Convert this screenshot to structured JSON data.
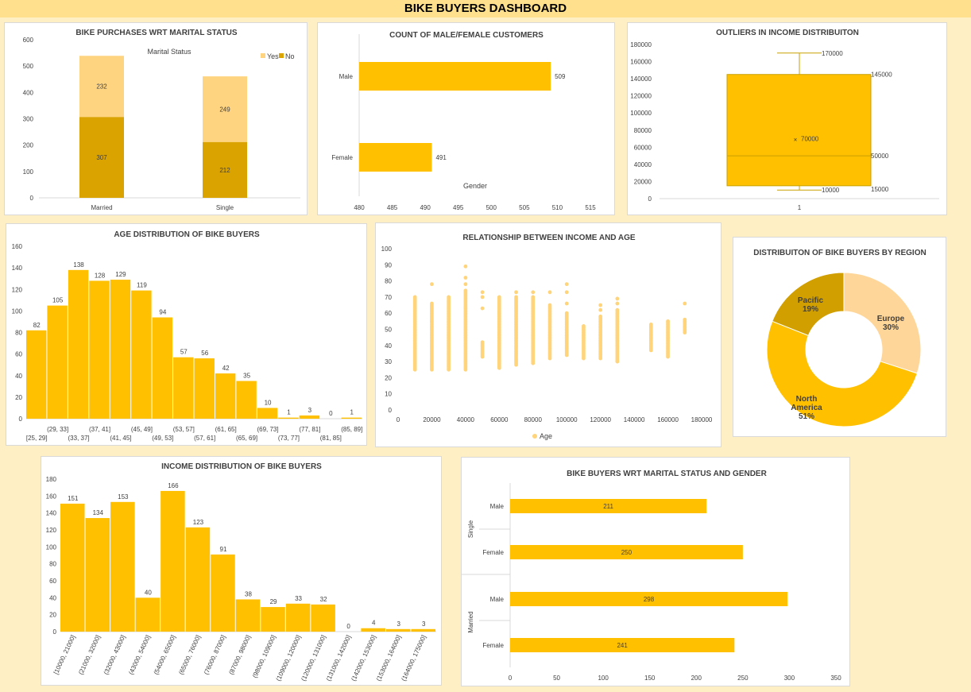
{
  "dashboard_title": "BIKE BUYERS DASHBOARD",
  "colors": {
    "gold": "#ffc000",
    "dark_gold": "#daa300",
    "light_gold": "#ffd480",
    "pale": "#ffe0a8",
    "scatter": "#ffd47a"
  },
  "chart_data": [
    {
      "id": "marital",
      "type": "bar",
      "stacked": true,
      "title": "BIKE PURCHASES WRT MARITAL STATUS",
      "legend_title": "Marital Status",
      "categories": [
        "Married",
        "Single"
      ],
      "series": [
        {
          "name": "No",
          "values": [
            307,
            212
          ],
          "color": "#daa300"
        },
        {
          "name": "Yes",
          "values": [
            232,
            249
          ],
          "color": "#ffd480"
        }
      ],
      "ylim": [
        0,
        600
      ],
      "yticks": [
        "0",
        "100",
        "200",
        "300",
        "400",
        "500",
        "600"
      ],
      "legend_position": "top-right"
    },
    {
      "id": "gender",
      "type": "bar",
      "orientation": "horizontal",
      "title": "COUNT OF MALE/FEMALE CUSTOMERS",
      "axis_title": "Gender",
      "categories": [
        "Male",
        "Female"
      ],
      "values": [
        509,
        491
      ],
      "xlim": [
        480,
        515
      ],
      "xticks": [
        "480",
        "485",
        "490",
        "495",
        "500",
        "505",
        "510",
        "515"
      ]
    },
    {
      "id": "box",
      "type": "box",
      "title": "OUTLIERS IN INCOME DISTRIBUITON",
      "category": "1",
      "min": 10000,
      "q1": 15000,
      "median": 50000,
      "mean": 70000,
      "q3": 145000,
      "max": 170000,
      "labels": {
        "min": "10000",
        "q1": "15000",
        "median": "50000",
        "mean": "70000",
        "q3": "145000",
        "max": "170000"
      },
      "ylim": [
        0,
        180000
      ],
      "yticks": [
        "0",
        "20000",
        "40000",
        "60000",
        "80000",
        "100000",
        "120000",
        "140000",
        "160000",
        "180000"
      ]
    },
    {
      "id": "age",
      "type": "bar",
      "title": "AGE DISTRIBUTION OF BIKE BUYERS",
      "categories": [
        "[25, 29]",
        "(29, 33]",
        "(33, 37]",
        "(37, 41]",
        "(41, 45]",
        "(45, 49]",
        "(49, 53]",
        "(53, 57]",
        "(57, 61]",
        "(61, 65]",
        "(65, 69]",
        "(69, 73]",
        "(73, 77]",
        "(77, 81]",
        "(81, 85]",
        "(85, 89]"
      ],
      "values": [
        82,
        105,
        138,
        128,
        129,
        119,
        94,
        57,
        56,
        42,
        35,
        10,
        1,
        3,
        0,
        1
      ],
      "ylim": [
        0,
        160
      ],
      "yticks": [
        "0",
        "20",
        "40",
        "60",
        "80",
        "100",
        "120",
        "140",
        "160"
      ]
    },
    {
      "id": "scatter",
      "type": "scatter",
      "title": "RELATIONSHIP BETWEEN INCOME AND AGE",
      "series_name": "Age",
      "xlim": [
        0,
        180000
      ],
      "ylim": [
        0,
        100
      ],
      "xticks": [
        "0",
        "20000",
        "40000",
        "60000",
        "80000",
        "100000",
        "120000",
        "140000",
        "160000",
        "180000"
      ],
      "yticks": [
        "0",
        "10",
        "20",
        "30",
        "40",
        "50",
        "60",
        "70",
        "80",
        "90",
        "100"
      ],
      "columns": [
        {
          "x": 10000,
          "ymin": 25,
          "ymax": 70,
          "extra": []
        },
        {
          "x": 20000,
          "ymin": 25,
          "ymax": 66,
          "extra": [
            78
          ]
        },
        {
          "x": 30000,
          "ymin": 25,
          "ymax": 70,
          "extra": []
        },
        {
          "x": 40000,
          "ymin": 25,
          "ymax": 74,
          "extra": [
            78,
            82,
            89
          ]
        },
        {
          "x": 50000,
          "ymin": 33,
          "ymax": 42,
          "extra": [
            63,
            70,
            73
          ]
        },
        {
          "x": 60000,
          "ymin": 26,
          "ymax": 70,
          "extra": []
        },
        {
          "x": 70000,
          "ymin": 28,
          "ymax": 70,
          "extra": [
            73
          ]
        },
        {
          "x": 80000,
          "ymin": 29,
          "ymax": 70,
          "extra": [
            73
          ]
        },
        {
          "x": 90000,
          "ymin": 32,
          "ymax": 65,
          "extra": [
            73
          ]
        },
        {
          "x": 100000,
          "ymin": 34,
          "ymax": 60,
          "extra": [
            66,
            73,
            78
          ]
        },
        {
          "x": 110000,
          "ymin": 32,
          "ymax": 52,
          "extra": []
        },
        {
          "x": 120000,
          "ymin": 32,
          "ymax": 58,
          "extra": [
            62,
            65
          ]
        },
        {
          "x": 130000,
          "ymin": 30,
          "ymax": 62,
          "extra": [
            66,
            69
          ]
        },
        {
          "x": 150000,
          "ymin": 37,
          "ymax": 53,
          "extra": []
        },
        {
          "x": 160000,
          "ymin": 33,
          "ymax": 55,
          "extra": []
        },
        {
          "x": 170000,
          "ymin": 48,
          "ymax": 56,
          "extra": [
            66
          ]
        }
      ]
    },
    {
      "id": "region",
      "type": "pie",
      "donut": true,
      "title": "DISTRIBUITON OF BIKE BUYERS BY REGION",
      "slices": [
        {
          "name": "Europe",
          "pct": "30%",
          "value": 30,
          "color": "#ffd699"
        },
        {
          "name": "North America",
          "pct": "51%",
          "value": 51,
          "color": "#ffc000"
        },
        {
          "name": "Pacific",
          "pct": "19%",
          "value": 19,
          "color": "#d19f00"
        }
      ]
    },
    {
      "id": "income",
      "type": "bar",
      "title": "INCOME DISTRIBUTION OF BIKE BUYERS",
      "categories": [
        "[10000, 21000]",
        "(21000, 32000]",
        "(32000, 43000]",
        "(43000, 54000]",
        "(54000, 65000]",
        "(65000, 76000]",
        "(76000, 87000]",
        "(87000, 98000]",
        "(98000, 109000]",
        "(109000, 120000]",
        "(120000, 131000]",
        "(131000, 142000]",
        "(142000, 153000]",
        "(153000, 164000]",
        "(164000, 175000]"
      ],
      "values": [
        151,
        134,
        153,
        40,
        166,
        123,
        91,
        38,
        29,
        33,
        32,
        0,
        4,
        3,
        3
      ],
      "ylim": [
        0,
        180
      ],
      "yticks": [
        "0",
        "20",
        "40",
        "60",
        "80",
        "100",
        "120",
        "140",
        "160",
        "180"
      ]
    },
    {
      "id": "mg",
      "type": "bar",
      "orientation": "horizontal",
      "title": "BIKE BUYERS WRT MARITAL STATUS AND GENDER",
      "groups": [
        {
          "name": "Single",
          "items": [
            {
              "label": "Male",
              "value": 211
            },
            {
              "label": "Female",
              "value": 250
            }
          ]
        },
        {
          "name": "Married",
          "items": [
            {
              "label": "Male",
              "value": 298
            },
            {
              "label": "Female",
              "value": 241
            }
          ]
        }
      ],
      "xlim": [
        0,
        350
      ],
      "xticks": [
        "0",
        "50",
        "100",
        "150",
        "200",
        "250",
        "300",
        "350"
      ]
    }
  ]
}
